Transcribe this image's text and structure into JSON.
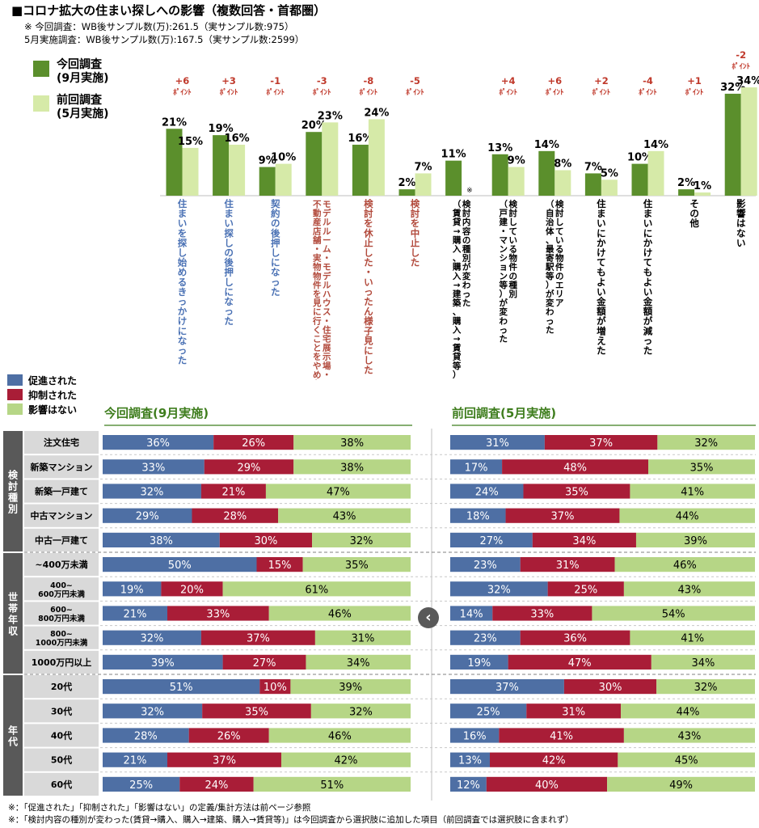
{
  "title": "■コロナ拡大の住まい探しへの影響（複数回答・首都圏）",
  "notes": [
    "※ 今回調査：WB後サンプル数(万):261.5（実サンプル数:975）",
    "5月実施調査：WB後サンプル数(万):167.5（実サンプル数:2599）"
  ],
  "legend_top": [
    {
      "name": "今回調査\n(9月実施)",
      "color": "#5b8f2c"
    },
    {
      "name": "前回調査\n(5月実施)",
      "color": "#d6eaa8"
    }
  ],
  "legend_bottom": [
    {
      "name": "促進された",
      "color": "#4e6fa4"
    },
    {
      "name": "抑制された",
      "color": "#a91d37"
    },
    {
      "name": "影響はない",
      "color": "#b6d686"
    }
  ],
  "nav": {
    "prev_label": "‹"
  },
  "footnotes": [
    "※：「促進された」「抑制された」「影響はない」の定義/集計方法は前ページ参照",
    "※：「検討内容の種別が変わった(賃貸→購入、購入→建築、購入→賃貸等)」は今回調査から選択肢に追加した項目（前回調査では選択肢に含まれず）"
  ],
  "chart_data": [
    {
      "type": "bar",
      "categories": [
        "住まいを探し始めるきっかけになった",
        "住まい探しの後押しになった",
        "契約の後押しになった",
        "モデルルーム・モデルハウス・住宅展示場・不動産店舗・実物物件を見に行くことをやめた",
        "検討を休止した・いったん様子見にした",
        "検討を中止した",
        "検討内容の種別が変わった（賃貸→購入、購入→建築、購入→賃貸等）",
        "検討している物件の種別（戸建・マンション等）が変わった",
        "検討している物件のエリア（自治体、最寄駅等）が変わった",
        "住まいにかけてもよい金額が増えた",
        "住まいにかけてもよい金額が減った",
        "その他",
        "影響はない"
      ],
      "category_colors": [
        "#4a71b4",
        "#4a71b4",
        "#4a71b4",
        "#b24a3c",
        "#b24a3c",
        "#b24a3c",
        "#000000",
        "#000000",
        "#000000",
        "#000000",
        "#000000",
        "#000000",
        "#000000"
      ],
      "series": [
        {
          "name": "今回調査\n(9月実施)",
          "values": [
            21,
            19,
            9,
            20,
            16,
            2,
            11,
            13,
            14,
            7,
            10,
            2,
            32
          ],
          "labels": [
            "21%",
            "19%",
            "9%",
            "20%",
            "16%",
            "2%",
            "11%",
            "13%",
            "14%",
            "7%",
            "10%",
            "2%",
            "32%"
          ]
        },
        {
          "name": "前回調査\n(5月実施)",
          "values": [
            15,
            16,
            10,
            23,
            24,
            7,
            null,
            9,
            8,
            5,
            14,
            1,
            34
          ],
          "labels": [
            "15%",
            "16%",
            "10%",
            "23%",
            "24%",
            "7%",
            "",
            "9%",
            "8%",
            "5%",
            "14%",
            "1%",
            "34%"
          ]
        }
      ],
      "diff_labels": [
        "+6\nﾎﾟｲﾝﾄ",
        "+3\nﾎﾟｲﾝﾄ",
        "-1\nﾎﾟｲﾝﾄ",
        "-3\nﾎﾟｲﾝﾄ",
        "-8\nﾎﾟｲﾝﾄ",
        "-5\nﾎﾟｲﾝﾄ",
        "",
        "+4\nﾎﾟｲﾝﾄ",
        "+6\nﾎﾟｲﾝﾄ",
        "+2\nﾎﾟｲﾝﾄ",
        "-4\nﾎﾟｲﾝﾄ",
        "+1\nﾎﾟｲﾝﾄ",
        "-2\nﾎﾟｲﾝﾄ"
      ],
      "asterisk": "※",
      "ylim": [
        0,
        40
      ]
    },
    {
      "type": "bar",
      "stacked": "percent",
      "orientation": "horizontal",
      "panels": [
        "今回調査(9月実施)",
        "前回調査(5月実施)"
      ],
      "groups": [
        {
          "label": "検討種別",
          "rows": 5
        },
        {
          "label": "世帯年収",
          "rows": 5
        },
        {
          "label": "年代",
          "rows": 5
        }
      ],
      "categories": [
        "注文住宅",
        "新築マンション",
        "新築一戸建て",
        "中古マンション",
        "中古一戸建て",
        "~400万未満",
        "400~\n600万円未満",
        "600~\n800万円未満",
        "800~\n1000万円未満",
        "1000万円以上",
        "20代",
        "30代",
        "40代",
        "50代",
        "60代"
      ],
      "series_names": [
        "促進された",
        "抑制された",
        "影響はない"
      ],
      "current": [
        [
          36,
          26,
          38
        ],
        [
          33,
          29,
          38
        ],
        [
          32,
          21,
          47
        ],
        [
          29,
          28,
          43
        ],
        [
          38,
          30,
          32
        ],
        [
          50,
          15,
          35
        ],
        [
          19,
          20,
          61
        ],
        [
          21,
          33,
          46
        ],
        [
          32,
          37,
          31
        ],
        [
          39,
          27,
          34
        ],
        [
          51,
          10,
          39
        ],
        [
          32,
          35,
          32
        ],
        [
          28,
          26,
          46
        ],
        [
          21,
          37,
          42
        ],
        [
          25,
          24,
          51
        ]
      ],
      "previous": [
        [
          31,
          37,
          32
        ],
        [
          17,
          48,
          35
        ],
        [
          24,
          35,
          41
        ],
        [
          18,
          37,
          44
        ],
        [
          27,
          34,
          39
        ],
        [
          23,
          31,
          46
        ],
        [
          32,
          25,
          43
        ],
        [
          14,
          33,
          54
        ],
        [
          23,
          36,
          41
        ],
        [
          19,
          47,
          34
        ],
        [
          37,
          30,
          32
        ],
        [
          25,
          31,
          44
        ],
        [
          16,
          41,
          43
        ],
        [
          13,
          42,
          45
        ],
        [
          12,
          40,
          49
        ]
      ],
      "colors": [
        "#4e6fa4",
        "#a91d37",
        "#b6d686"
      ]
    }
  ]
}
